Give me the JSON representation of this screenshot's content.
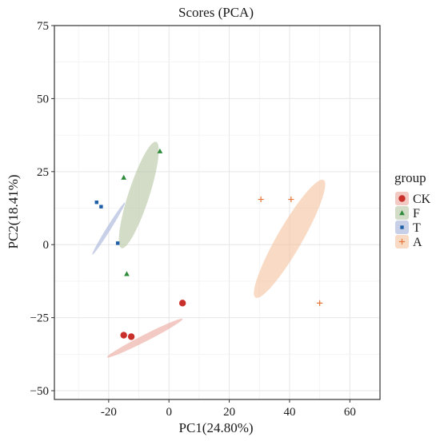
{
  "chart_data": {
    "type": "scatter",
    "title": "Scores (PCA)",
    "xlabel": "PC1(24.80%)",
    "ylabel": "PC2(18.41%)",
    "xlim": [
      -38,
      70
    ],
    "ylim": [
      -53,
      75
    ],
    "xticks": [
      -20,
      0,
      20,
      40,
      60
    ],
    "xtick_labels": [
      "-20",
      "0",
      "20",
      "40",
      "60"
    ],
    "yticks": [
      -50,
      -25,
      0,
      25,
      50,
      75
    ],
    "ytick_labels": [
      "−50",
      "−25",
      "0",
      "25",
      "50",
      "75"
    ],
    "grid": true,
    "legend_title": "group",
    "legend_position": "right",
    "series": [
      {
        "name": "CK",
        "color": "#c9302c",
        "fill": "#eba99e",
        "marker": "circle",
        "points": [
          [
            -15,
            -31
          ],
          [
            -12.5,
            -31.5
          ],
          [
            4.5,
            -20
          ]
        ],
        "ellipse": {
          "center": [
            -8,
            -32
          ],
          "semi_major": 53,
          "semi_minor": 4.2,
          "angle_deg": 27
        }
      },
      {
        "name": "F",
        "color": "#2e8b3a",
        "fill": "#b6c7a4",
        "marker": "triangle",
        "points": [
          [
            -3,
            32
          ],
          [
            -15,
            23
          ],
          [
            -14,
            -10
          ]
        ],
        "ellipse": {
          "center": [
            -10,
            17
          ],
          "semi_major": 70,
          "semi_minor": 13,
          "angle_deg": 72
        }
      },
      {
        "name": "T",
        "color": "#1f5fa8",
        "fill": "#a7b3da",
        "marker": "square",
        "points": [
          [
            -24,
            14.5
          ],
          [
            -22.5,
            13
          ],
          [
            -17,
            0.5
          ]
        ],
        "ellipse": {
          "center": [
            -20,
            5.5
          ],
          "semi_major": 38.5,
          "semi_minor": 2.6,
          "angle_deg": 58
        }
      },
      {
        "name": "A",
        "color": "#e8783a",
        "fill": "#f6c3a0",
        "marker": "plus",
        "points": [
          [
            30.5,
            15.5
          ],
          [
            40.5,
            15.5
          ],
          [
            50,
            -20
          ]
        ],
        "ellipse": {
          "center": [
            40,
            2
          ],
          "semi_major": 85,
          "semi_minor": 15.5,
          "angle_deg": 60
        }
      }
    ]
  }
}
